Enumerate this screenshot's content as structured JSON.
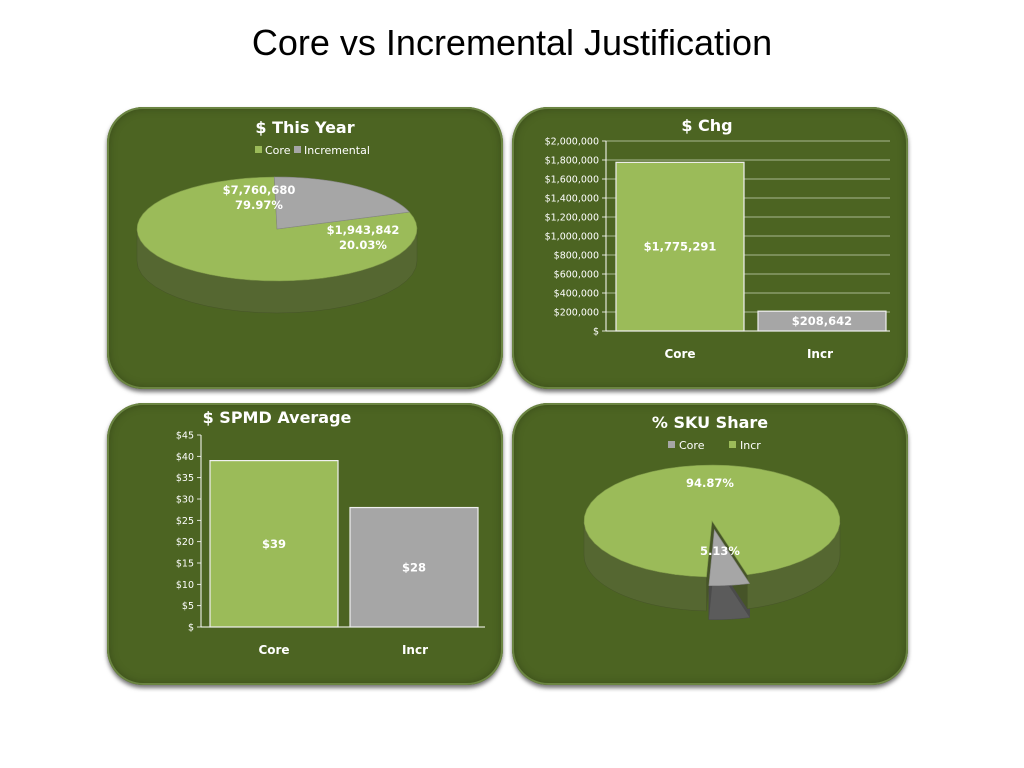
{
  "page_title": "Core vs Incremental Justification",
  "colors": {
    "core": "#9bbb59",
    "incr": "#a6a6a6",
    "panel": "#4c6422"
  },
  "chart_data": [
    {
      "type": "pie",
      "title": "$ This Year",
      "legend": [
        "Core",
        "Incremental"
      ],
      "legend_placement": "top",
      "slices": [
        {
          "name": "Core",
          "value": 7760680,
          "value_label": "$7,760,680",
          "percent_label": "79.97%"
        },
        {
          "name": "Incremental",
          "value": 1943842,
          "value_label": "$1,943,842",
          "percent_label": "20.03%"
        }
      ]
    },
    {
      "type": "bar",
      "title": "$ Chg",
      "categories": [
        "Core",
        "Incr"
      ],
      "values": [
        1775291,
        208642
      ],
      "data_labels": [
        "$1,775,291",
        "$208,642"
      ],
      "ylim": [
        0,
        2000000
      ],
      "yticks": [
        0,
        200000,
        400000,
        600000,
        800000,
        1000000,
        1200000,
        1400000,
        1600000,
        1800000,
        2000000
      ],
      "ytick_labels": [
        "$",
        "$200,000",
        "$400,000",
        "$600,000",
        "$800,000",
        "$1,000,000",
        "$1,200,000",
        "$1,400,000",
        "$1,600,000",
        "$1,800,000",
        "$2,000,000"
      ],
      "grid": true
    },
    {
      "type": "bar",
      "title": "$ SPMD Average",
      "categories": [
        "Core",
        "Incr"
      ],
      "values": [
        39,
        28
      ],
      "data_labels": [
        "$39",
        "$28"
      ],
      "ylim": [
        0,
        45
      ],
      "yticks": [
        0,
        5,
        10,
        15,
        20,
        25,
        30,
        35,
        40,
        45
      ],
      "ytick_labels": [
        "$",
        "$5",
        "$10",
        "$15",
        "$20",
        "$25",
        "$30",
        "$35",
        "$40",
        "$45"
      ],
      "grid": false
    },
    {
      "type": "pie",
      "title": "% SKU Share",
      "legend": [
        "Core",
        "Incr"
      ],
      "legend_placement": "top",
      "slices": [
        {
          "name": "Core",
          "value": 5.13,
          "percent_label": "5.13%"
        },
        {
          "name": "Incr",
          "value": 94.87,
          "percent_label": "94.87%"
        }
      ]
    }
  ]
}
